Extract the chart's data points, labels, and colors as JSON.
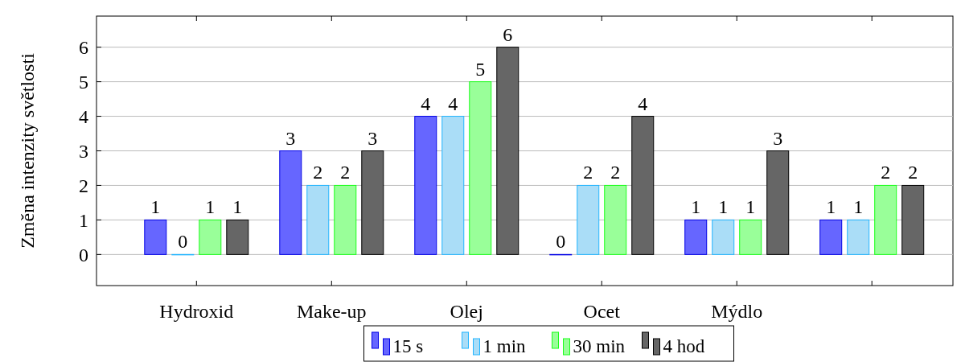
{
  "chart_data": {
    "type": "bar",
    "ylabel": "Změna intenzity světlosti",
    "categories": [
      "Hydroxid",
      "Make-up",
      "Olej",
      "Ocet",
      "Mýdlo",
      null
    ],
    "series": [
      {
        "name": "15 s",
        "color": "#6666ff",
        "values": [
          1,
          3,
          4,
          0,
          1,
          1
        ]
      },
      {
        "name": "1 min",
        "color": "#aaddf7",
        "values": [
          0,
          2,
          4,
          2,
          1,
          1
        ]
      },
      {
        "name": "30 min",
        "color": "#99ff99",
        "values": [
          1,
          2,
          5,
          2,
          1,
          2
        ]
      },
      {
        "name": "4 hod",
        "color": "#666666",
        "values": [
          1,
          3,
          6,
          4,
          3,
          2
        ]
      }
    ],
    "ylim": [
      -0.9,
      6.9
    ],
    "yticks": [
      0,
      1,
      2,
      3,
      4,
      5,
      6
    ],
    "grid": "y",
    "legend": "bottom",
    "data_labels": true
  }
}
